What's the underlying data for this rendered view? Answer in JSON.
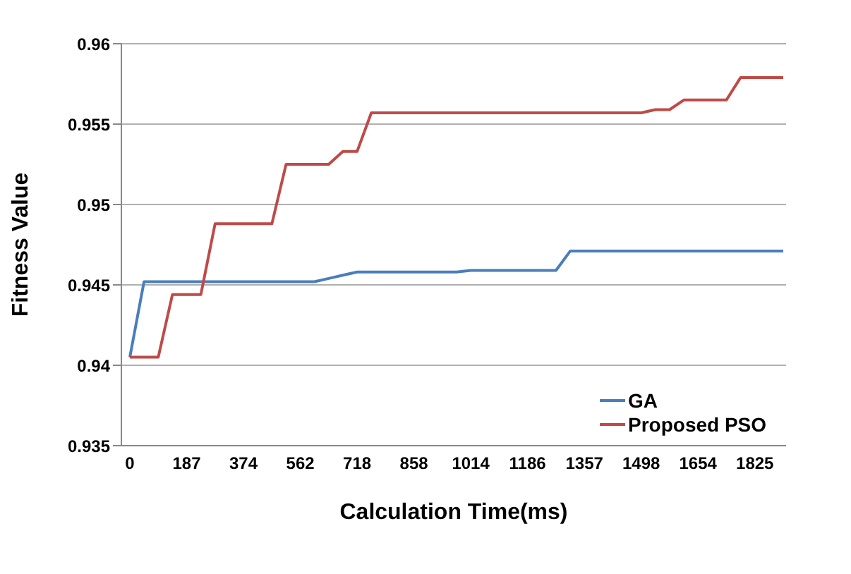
{
  "chart_data": {
    "type": "line",
    "xlabel": "Calculation Time(ms)",
    "ylabel": "Fitness Value",
    "categories": [
      "0",
      null,
      null,
      null,
      "187",
      null,
      null,
      null,
      "374",
      null,
      null,
      null,
      "562",
      null,
      null,
      null,
      "718",
      null,
      null,
      null,
      "858",
      null,
      null,
      null,
      "1014",
      null,
      null,
      null,
      "1186",
      null,
      null,
      null,
      "1357",
      null,
      null,
      null,
      "1498",
      null,
      null,
      null,
      "1654",
      null,
      null,
      null,
      "1825",
      null,
      null
    ],
    "series": [
      {
        "name": "GA",
        "color": "#4a7ebb",
        "values": [
          0.9405,
          0.9452,
          0.9452,
          0.9452,
          0.9452,
          0.9452,
          0.9452,
          0.9452,
          0.9452,
          0.9452,
          0.9452,
          0.9452,
          0.9452,
          0.9452,
          0.9454,
          0.9456,
          0.9458,
          0.9458,
          0.9458,
          0.9458,
          0.9458,
          0.9458,
          0.9458,
          0.9458,
          0.9459,
          0.9459,
          0.9459,
          0.9459,
          0.9459,
          0.9459,
          0.9459,
          0.9471,
          0.9471,
          0.9471,
          0.9471,
          0.9471,
          0.9471,
          0.9471,
          0.9471,
          0.9471,
          0.9471,
          0.9471,
          0.9471,
          0.9471,
          0.9471,
          0.9471,
          0.9471
        ]
      },
      {
        "name": "Proposed PSO",
        "color": "#be4b48",
        "values": [
          0.9405,
          0.9405,
          0.9405,
          0.9444,
          0.9444,
          0.9444,
          0.9488,
          0.9488,
          0.9488,
          0.9488,
          0.9488,
          0.9525,
          0.9525,
          0.9525,
          0.9525,
          0.9533,
          0.9533,
          0.9557,
          0.9557,
          0.9557,
          0.9557,
          0.9557,
          0.9557,
          0.9557,
          0.9557,
          0.9557,
          0.9557,
          0.9557,
          0.9557,
          0.9557,
          0.9557,
          0.9557,
          0.9557,
          0.9557,
          0.9557,
          0.9557,
          0.9557,
          0.9559,
          0.9559,
          0.9565,
          0.9565,
          0.9565,
          0.9565,
          0.9579,
          0.9579,
          0.9579,
          0.9579
        ]
      }
    ],
    "ylim": [
      0.935,
      0.96
    ],
    "yticks": [
      0.935,
      0.94,
      0.945,
      0.95,
      0.955,
      0.96
    ],
    "grid": "y",
    "legend": "right",
    "marker": "none",
    "line_style": "solid"
  }
}
